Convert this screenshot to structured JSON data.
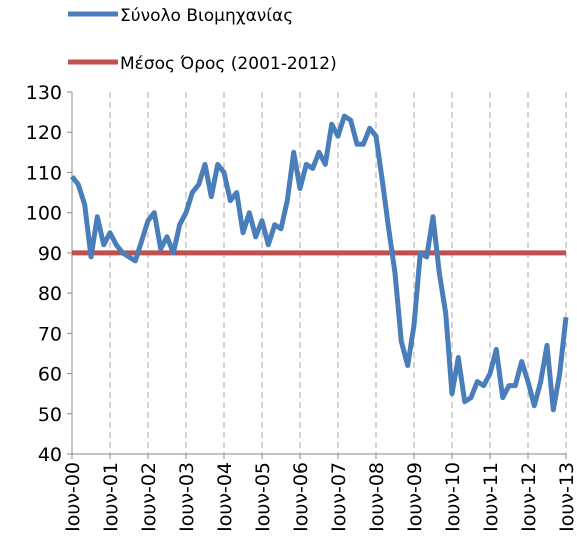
{
  "chart_data": {
    "type": "line",
    "categories": [
      "Ιουν-00",
      null,
      null,
      null,
      null,
      null,
      "Ιουν-01",
      null,
      null,
      null,
      null,
      null,
      "Ιουν-02",
      null,
      null,
      null,
      null,
      null,
      "Ιουν-03",
      null,
      null,
      null,
      null,
      null,
      "Ιουν-04",
      null,
      null,
      null,
      null,
      null,
      "Ιουν-05",
      null,
      null,
      null,
      null,
      null,
      "Ιουν-06",
      null,
      null,
      null,
      null,
      null,
      "Ιουν-07",
      null,
      null,
      null,
      null,
      null,
      "Ιουν-08",
      null,
      null,
      null,
      null,
      null,
      "Ιουν-09",
      null,
      null,
      null,
      null,
      null,
      "Ιουν-10",
      null,
      null,
      null,
      null,
      null,
      "Ιουν-11",
      null,
      null,
      null,
      null,
      null,
      "Ιουν-12",
      null,
      null,
      null,
      null,
      null,
      "Ιουν-13"
    ],
    "series": [
      {
        "name": "Σύνολο Βιομηχανίας",
        "color": "#4a7ebb",
        "values": [
          109,
          107,
          102,
          89,
          99,
          92,
          95,
          92,
          90,
          89,
          88,
          93,
          98,
          100,
          91,
          94,
          90,
          97,
          100,
          105,
          107,
          112,
          104,
          112,
          110,
          103,
          105,
          95,
          100,
          94,
          98,
          92,
          97,
          96,
          103,
          115,
          106,
          112,
          111,
          115,
          112,
          122,
          119,
          124,
          123,
          117,
          117,
          121,
          119,
          108,
          96,
          85,
          68,
          62,
          72,
          90,
          89,
          99,
          85,
          75,
          55,
          64,
          53,
          54,
          58,
          57,
          60,
          66,
          54,
          57,
          57,
          63,
          58,
          52,
          58,
          67,
          51,
          60,
          74
        ]
      },
      {
        "name": "Μέσος Όρος (2001-2012)",
        "color": "#c0504d",
        "values": [
          90,
          90,
          90,
          90,
          90,
          90,
          90,
          90,
          90,
          90,
          90,
          90,
          90,
          90,
          90,
          90,
          90,
          90,
          90,
          90,
          90,
          90,
          90,
          90,
          90,
          90,
          90,
          90,
          90,
          90,
          90,
          90,
          90,
          90,
          90,
          90,
          90,
          90,
          90,
          90,
          90,
          90,
          90,
          90,
          90,
          90,
          90,
          90,
          90,
          90,
          90,
          90,
          90,
          90,
          90,
          90,
          90,
          90,
          90,
          90,
          90,
          90,
          90,
          90,
          90,
          90,
          90,
          90,
          90,
          90,
          90,
          90,
          90,
          90,
          90,
          90,
          90,
          90,
          90
        ]
      }
    ],
    "ylim": [
      40,
      130
    ],
    "yticks": [
      40,
      50,
      60,
      70,
      80,
      90,
      100,
      110,
      120,
      130
    ],
    "grid": true
  }
}
